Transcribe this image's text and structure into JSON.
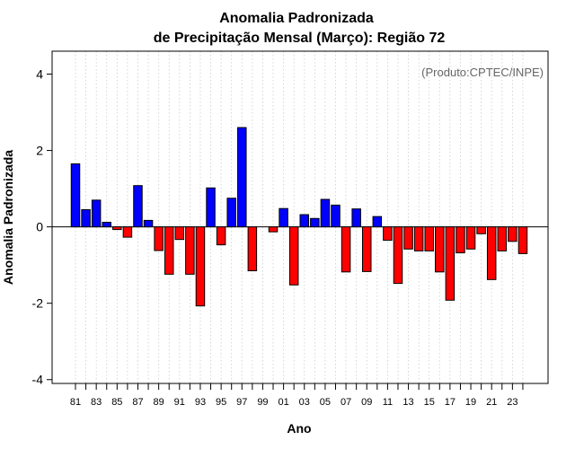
{
  "chart_data": {
    "type": "bar",
    "title": [
      "Anomalia Padronizada",
      "de Precipitação Mensal (Março): Região 72"
    ],
    "credit": "(Produto:CPTEC/INPE)",
    "xlabel": "Ano",
    "ylabel": "Anomalia Padronizada",
    "ylim": [
      -4.1,
      4.6
    ],
    "y_ticks": [
      -4,
      -2,
      0,
      2,
      4
    ],
    "x_tick_labels": [
      "81",
      "83",
      "85",
      "87",
      "89",
      "91",
      "93",
      "95",
      "97",
      "99",
      "01",
      "03",
      "05",
      "07",
      "09",
      "11",
      "13",
      "15",
      "17",
      "19",
      "21",
      "23"
    ],
    "grid": "vertical dotted",
    "colors": {
      "positive": "#0000ff",
      "negative": "#ff0000"
    },
    "categories": [
      "1981",
      "1982",
      "1983",
      "1984",
      "1985",
      "1986",
      "1987",
      "1988",
      "1989",
      "1990",
      "1991",
      "1992",
      "1993",
      "1994",
      "1995",
      "1996",
      "1997",
      "1998",
      "1999",
      "2000",
      "2001",
      "2002",
      "2003",
      "2004",
      "2005",
      "2006",
      "2007",
      "2008",
      "2009",
      "2010",
      "2011",
      "2012",
      "2013",
      "2014",
      "2015",
      "2016",
      "2017",
      "2018",
      "2019",
      "2020",
      "2021",
      "2022",
      "2023",
      "2024"
    ],
    "values": [
      1.65,
      0.45,
      0.7,
      0.12,
      -0.07,
      -0.27,
      1.08,
      0.17,
      -0.62,
      -1.24,
      -0.33,
      -1.24,
      -2.07,
      1.02,
      -0.47,
      0.75,
      2.6,
      -1.15,
      0.0,
      -0.13,
      0.48,
      -1.52,
      0.32,
      0.22,
      0.72,
      0.57,
      -1.18,
      0.47,
      -1.17,
      0.27,
      -0.35,
      -1.48,
      -0.58,
      -0.63,
      -0.63,
      -1.18,
      -1.92,
      -0.68,
      -0.58,
      -0.18,
      -1.38,
      -0.63,
      -0.38,
      -0.7
    ]
  }
}
